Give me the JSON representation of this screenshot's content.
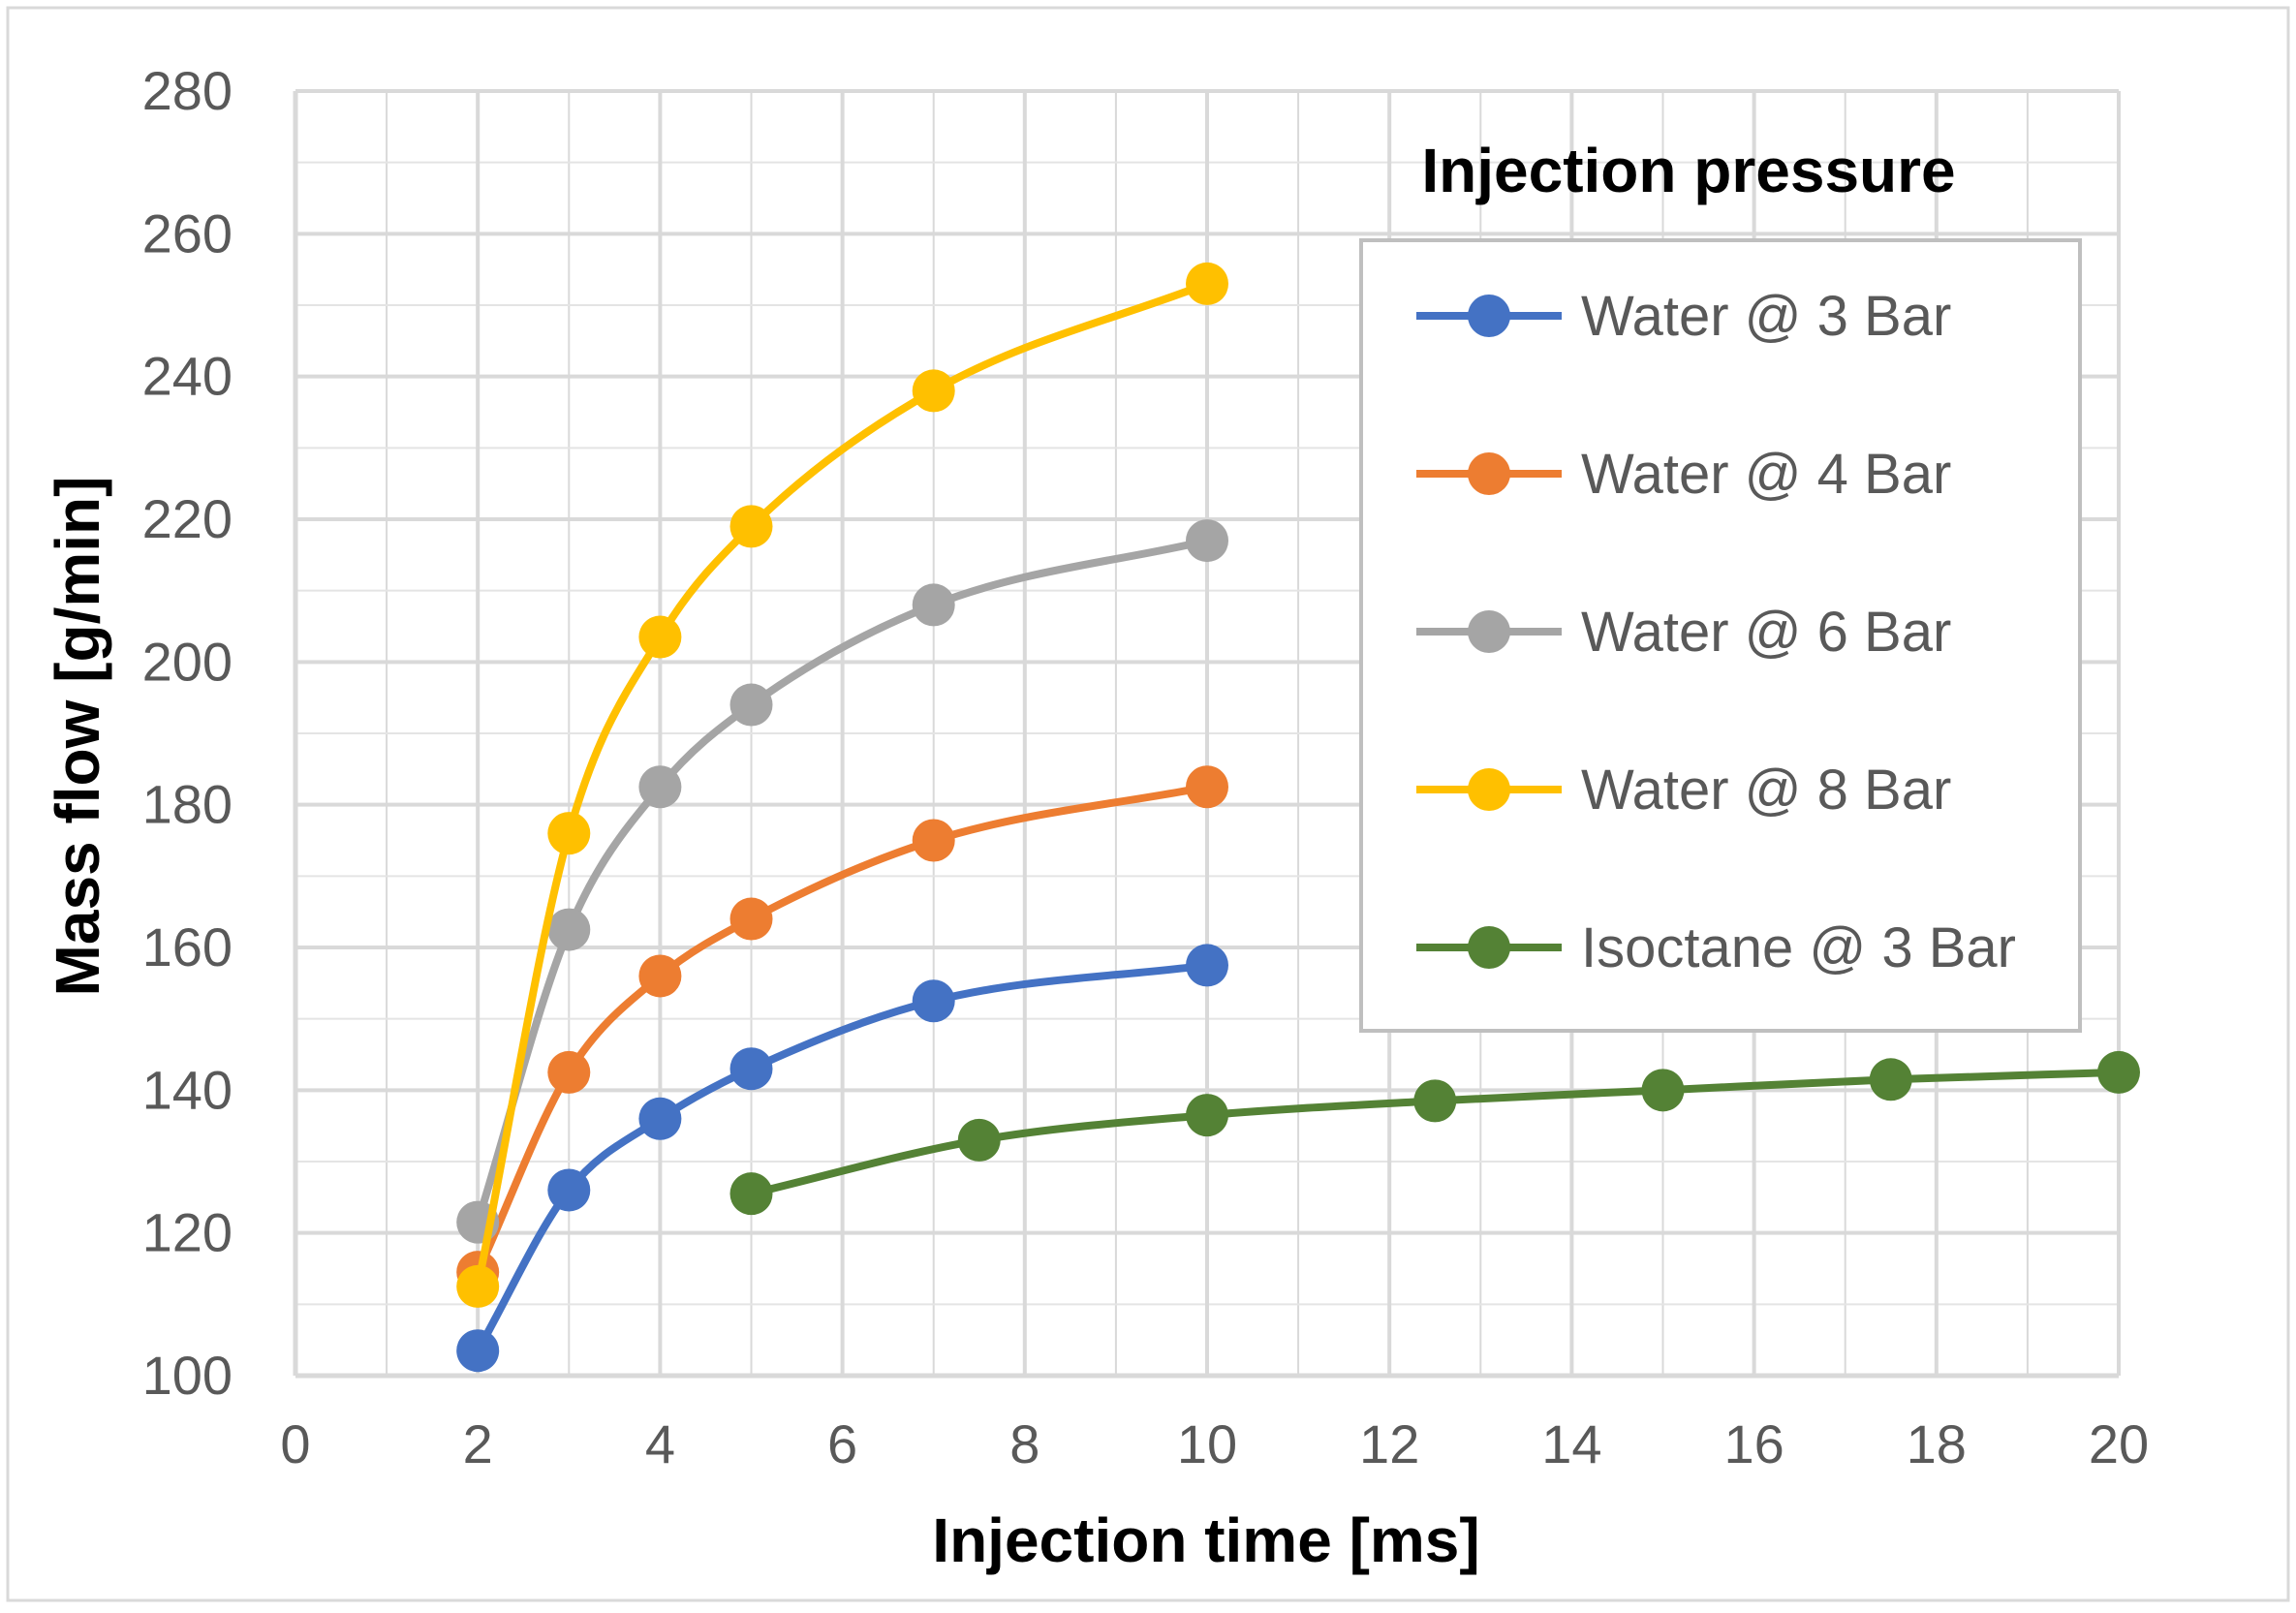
{
  "chart_data": {
    "type": "line",
    "title": "",
    "xlabel": "Injection time [ms]",
    "ylabel": "Mass flow [g/min]",
    "xlim": [
      0,
      20
    ],
    "ylim": [
      100,
      280
    ],
    "x_ticks": [
      "0",
      "2",
      "4",
      "6",
      "8",
      "10",
      "12",
      "14",
      "16",
      "18",
      "20"
    ],
    "y_ticks": [
      "100",
      "120",
      "140",
      "160",
      "180",
      "200",
      "220",
      "240",
      "260",
      "280"
    ],
    "grid": true,
    "legend": {
      "title": "Injection pressure",
      "placement": "top-right"
    },
    "series": [
      {
        "name": "Water @ 3 Bar",
        "color": "#4472C4",
        "x": [
          2,
          3,
          4,
          5,
          7,
          10
        ],
        "y": [
          103.5,
          126,
          136,
          143,
          152.5,
          157.5
        ]
      },
      {
        "name": "Water @ 4 Bar",
        "color": "#ED7D31",
        "x": [
          2,
          3,
          4,
          5,
          7,
          10
        ],
        "y": [
          114.5,
          142.5,
          156,
          164,
          175,
          182.5
        ]
      },
      {
        "name": "Water @ 6 Bar",
        "color": "#A5A5A5",
        "x": [
          2,
          3,
          4,
          5,
          7,
          10
        ],
        "y": [
          121.5,
          162.5,
          182.5,
          194,
          208,
          217
        ]
      },
      {
        "name": "Water @ 8 Bar",
        "color": "#FFC000",
        "x": [
          2,
          3,
          4,
          5,
          7,
          10
        ],
        "y": [
          112.5,
          176,
          203.5,
          219,
          238,
          253
        ]
      },
      {
        "name": "Isoctane @ 3 Bar",
        "color": "#548235",
        "x": [
          5,
          7.5,
          10,
          12.5,
          15,
          17.5,
          20
        ],
        "y": [
          125.5,
          133,
          136.5,
          138.5,
          140,
          141.5,
          142.5
        ]
      }
    ]
  }
}
